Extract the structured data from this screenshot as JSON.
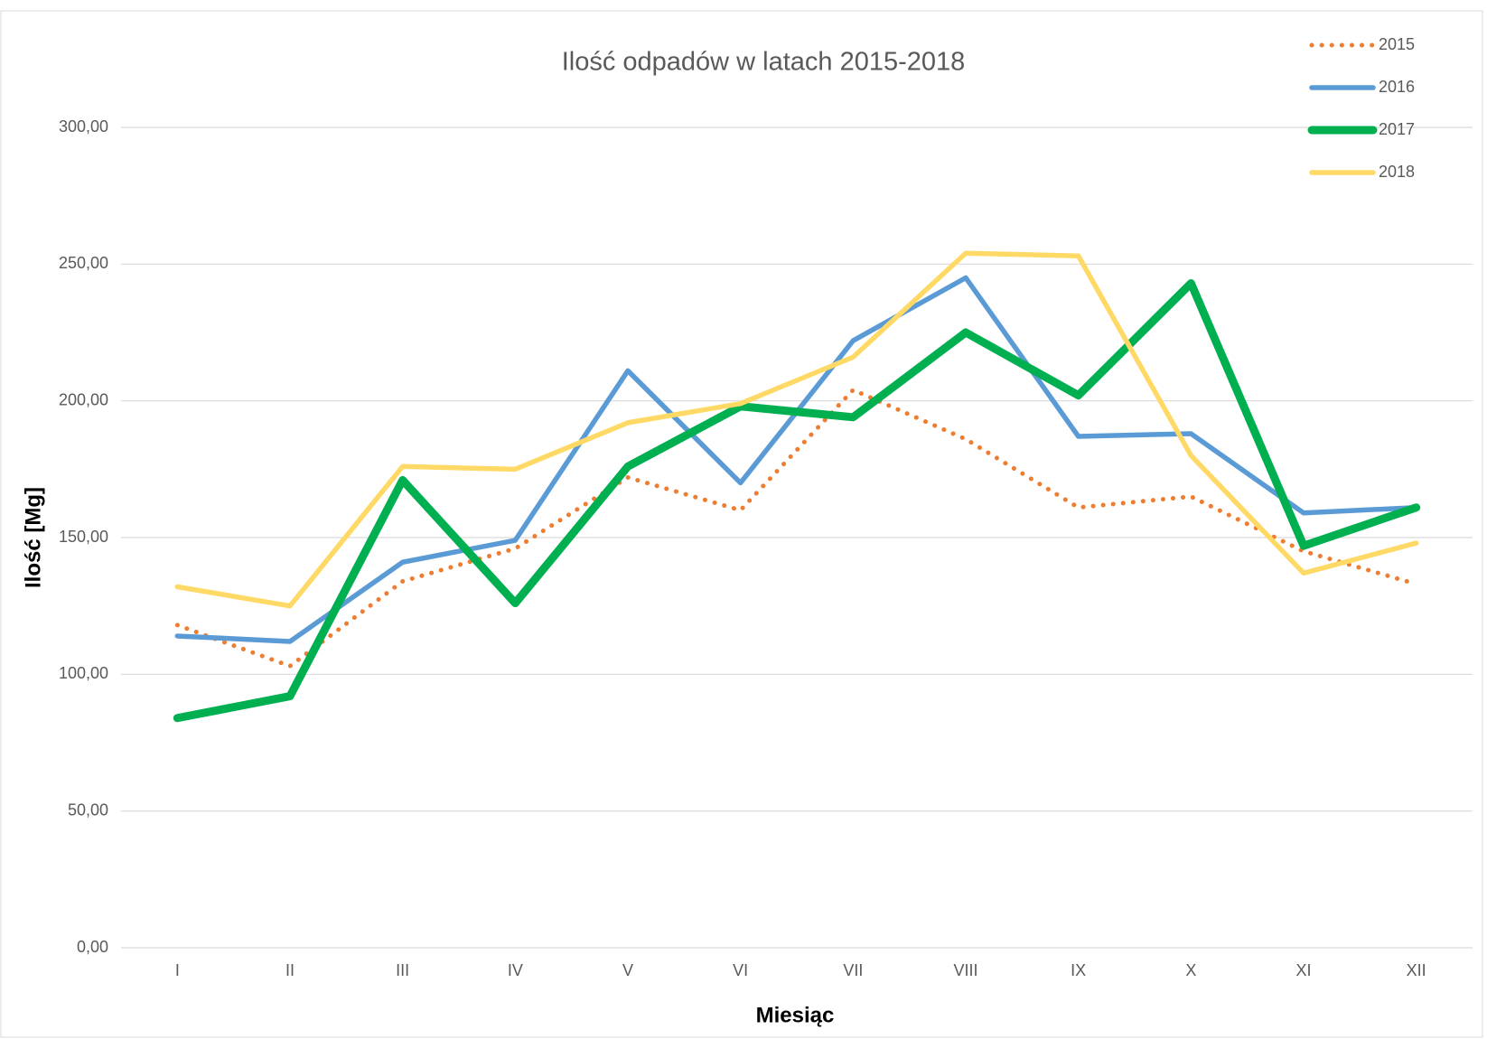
{
  "chart_data": {
    "type": "line",
    "title": "Ilość odpadów w latach 2015-2018",
    "x_label": "Miesiąc",
    "y_label": "Ilość [Mg]",
    "categories": [
      "I",
      "II",
      "III",
      "IV",
      "V",
      "VI",
      "VII",
      "VIII",
      "IX",
      "X",
      "XI",
      "XII"
    ],
    "series": [
      {
        "name": "2015",
        "color": "#ED7D31",
        "line_style": "dotted",
        "values": [
          118,
          103,
          134,
          146,
          172,
          160,
          204,
          186,
          161,
          165,
          145,
          133
        ]
      },
      {
        "name": "2016",
        "color": "#5B9BD5",
        "line_style": "solid",
        "values": [
          114,
          112,
          141,
          149,
          211,
          170,
          222,
          245,
          187,
          188,
          159,
          161
        ]
      },
      {
        "name": "2017",
        "color": "#00B050",
        "line_style": "solid",
        "values": [
          84,
          92,
          171,
          126,
          176,
          198,
          194,
          225,
          202,
          243,
          147,
          161
        ]
      },
      {
        "name": "2018",
        "color": "#FFD966",
        "line_style": "solid",
        "values": [
          132,
          125,
          176,
          175,
          192,
          199,
          216,
          254,
          253,
          180,
          137,
          148
        ]
      }
    ],
    "ylim": [
      0,
      300
    ],
    "yticks": [
      {
        "value": 0,
        "label": "0,00"
      },
      {
        "value": 50,
        "label": "50,00"
      },
      {
        "value": 100,
        "label": "100,00"
      },
      {
        "value": 150,
        "label": "150,00"
      },
      {
        "value": 200,
        "label": "200,00"
      },
      {
        "value": 250,
        "label": "250,00"
      },
      {
        "value": 300,
        "label": "300,00"
      }
    ],
    "grid": true,
    "legend": "top-right"
  }
}
